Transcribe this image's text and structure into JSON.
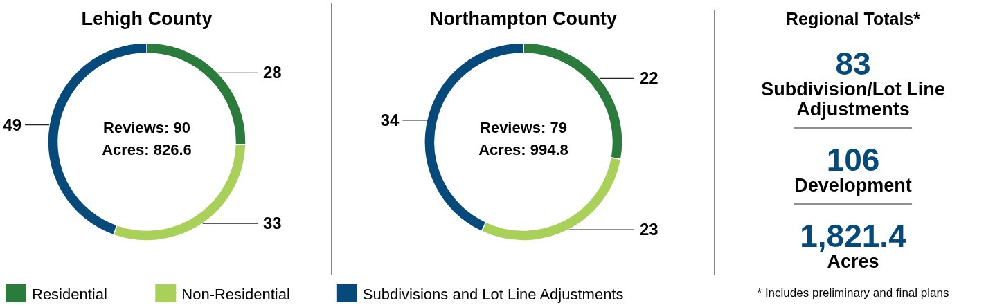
{
  "chart_data": [
    {
      "type": "donut",
      "title": "Lehigh County",
      "categories": [
        "Residential",
        "Non-Residential",
        "Subdivisions and Lot Line Adjustments"
      ],
      "values": [
        28,
        33,
        49
      ],
      "colors": [
        "#2a7b3c",
        "#a9d15a",
        "#054a7a"
      ],
      "data_labels": true,
      "legend": "bottom",
      "annotations": [
        "Reviews: 90",
        "Acres: 826.6"
      ]
    },
    {
      "type": "donut",
      "title": "Northampton County",
      "categories": [
        null,
        null,
        null
      ],
      "values": [
        22,
        23,
        34
      ],
      "colors": [
        "#2a7b3c",
        "#a9d15a",
        "#054a7a"
      ],
      "data_labels": true,
      "annotations": [
        "Reviews: 79",
        "Acres: 994.8"
      ]
    },
    {
      "type": "other",
      "title": "Regional Totals*",
      "annotations": [
        "83",
        "Subdivision/Lot Line Adjustments",
        "106",
        "Development",
        "1,821.4",
        "Acres",
        "* Includes preliminary and final plans"
      ]
    }
  ]
}
